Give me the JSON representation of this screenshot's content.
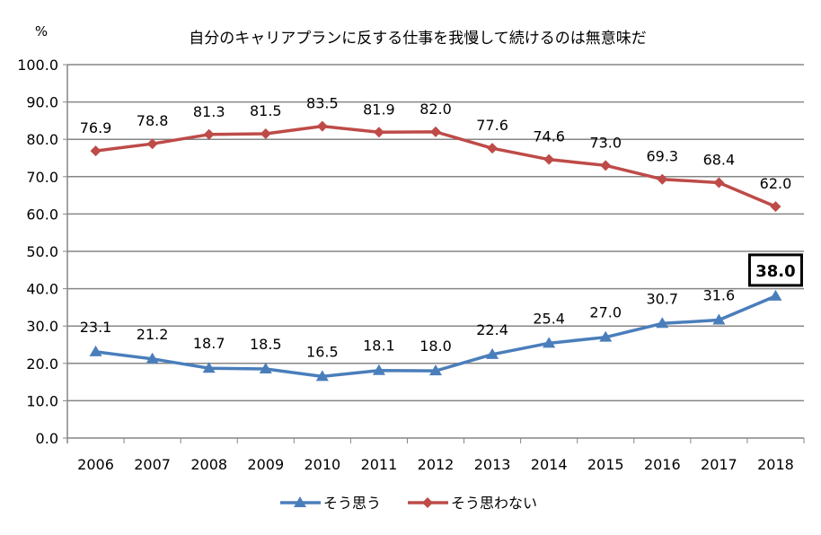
{
  "chart_data": {
    "type": "line",
    "title": "自分のキャリアプランに反する仕事を我慢して続けるのは無意味だ",
    "ylabel": "%",
    "xlabel": "",
    "ylim": [
      0,
      100
    ],
    "yticks": [
      "0.0",
      "10.0",
      "20.0",
      "30.0",
      "40.0",
      "50.0",
      "60.0",
      "70.0",
      "80.0",
      "90.0",
      "100.0"
    ],
    "grid": "horizontal",
    "legend_position": "bottom",
    "categories": [
      "2006",
      "2007",
      "2008",
      "2009",
      "2010",
      "2011",
      "2012",
      "2013",
      "2014",
      "2015",
      "2016",
      "2017",
      "2018"
    ],
    "series": [
      {
        "name": "そう思う",
        "color": "#4A7EBB",
        "marker": "triangle",
        "values": [
          23.1,
          21.2,
          18.7,
          18.5,
          16.5,
          18.1,
          18.0,
          22.4,
          25.4,
          27.0,
          30.7,
          31.6,
          38.0
        ],
        "labels": [
          "23.1",
          "21.2",
          "18.7",
          "18.5",
          "16.5",
          "18.1",
          "18.0",
          "22.4",
          "25.4",
          "27.0",
          "30.7",
          "31.6",
          "38.0"
        ]
      },
      {
        "name": "そう思わない",
        "color": "#BE4B48",
        "marker": "diamond",
        "values": [
          76.9,
          78.8,
          81.3,
          81.5,
          83.5,
          81.9,
          82.0,
          77.6,
          74.6,
          73.0,
          69.3,
          68.4,
          62.0
        ],
        "labels": [
          "76.9",
          "78.8",
          "81.3",
          "81.5",
          "83.5",
          "81.9",
          "82.0",
          "77.6",
          "74.6",
          "73.0",
          "69.3",
          "68.4",
          "62.0"
        ]
      }
    ],
    "highlight": {
      "series": 0,
      "index": 12,
      "style": "boxed-bold"
    }
  }
}
